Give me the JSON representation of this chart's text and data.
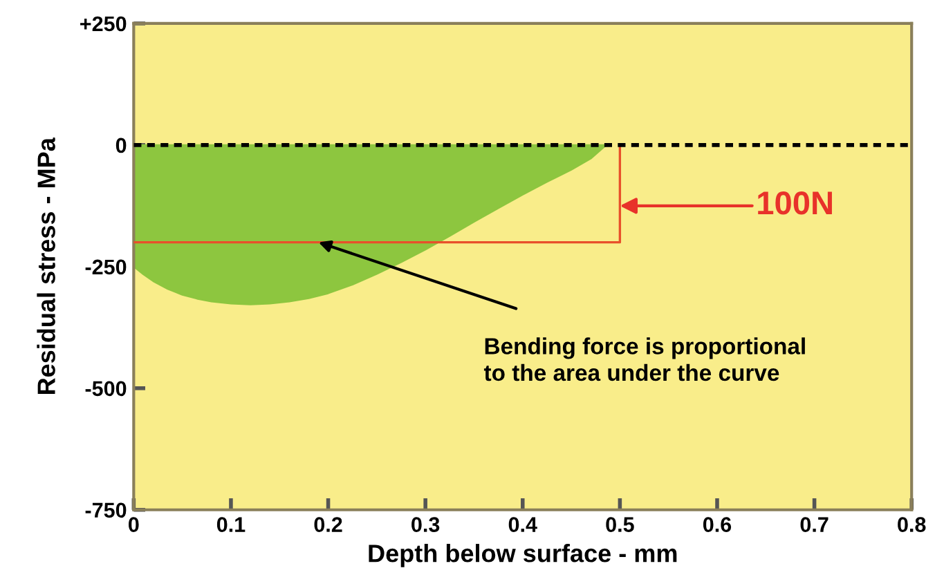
{
  "chart_data": {
    "type": "area",
    "xlabel": "Depth below surface - mm",
    "ylabel": "Residual stress - MPa",
    "xlim": [
      0,
      0.8
    ],
    "ylim": [
      -750,
      250
    ],
    "xticks": [
      0,
      0.1,
      0.2,
      0.3,
      0.4,
      0.5,
      0.6,
      0.7,
      0.8
    ],
    "yticks": [
      -750,
      -500,
      -250,
      0,
      {
        "value": 250,
        "label": "+250"
      }
    ],
    "grid": false,
    "legend": false,
    "series": [
      {
        "color": "#8dc63f",
        "x": [
          0,
          0.01,
          0.02,
          0.035,
          0.05,
          0.065,
          0.08,
          0.1,
          0.12,
          0.14,
          0.16,
          0.18,
          0.2,
          0.225,
          0.25,
          0.275,
          0.3,
          0.325,
          0.35,
          0.375,
          0.4,
          0.425,
          0.45,
          0.47,
          0.486
        ],
        "values": [
          -250,
          -266,
          -280,
          -296,
          -308,
          -316,
          -322,
          -326,
          -328,
          -326,
          -322,
          -315,
          -305,
          -287,
          -265,
          -241,
          -215,
          -187,
          -158,
          -130,
          -102,
          -76,
          -51,
          -28,
          0
        ]
      },
      {
        "type": "line",
        "color": "#e8502a",
        "x": [
          0,
          0.5,
          0.5
        ],
        "values": [
          -200,
          -200,
          0
        ]
      }
    ],
    "ref_lines": [
      {
        "axis": "y",
        "value": 0,
        "color": "#000000",
        "line_style": "dotted"
      }
    ],
    "annotations": [
      {
        "text": "100N",
        "x": 0.5,
        "y": -125
      },
      {
        "text": "Bending force is proportional\nto the area under the curve",
        "x": 0.19,
        "y": -200
      }
    ]
  }
}
